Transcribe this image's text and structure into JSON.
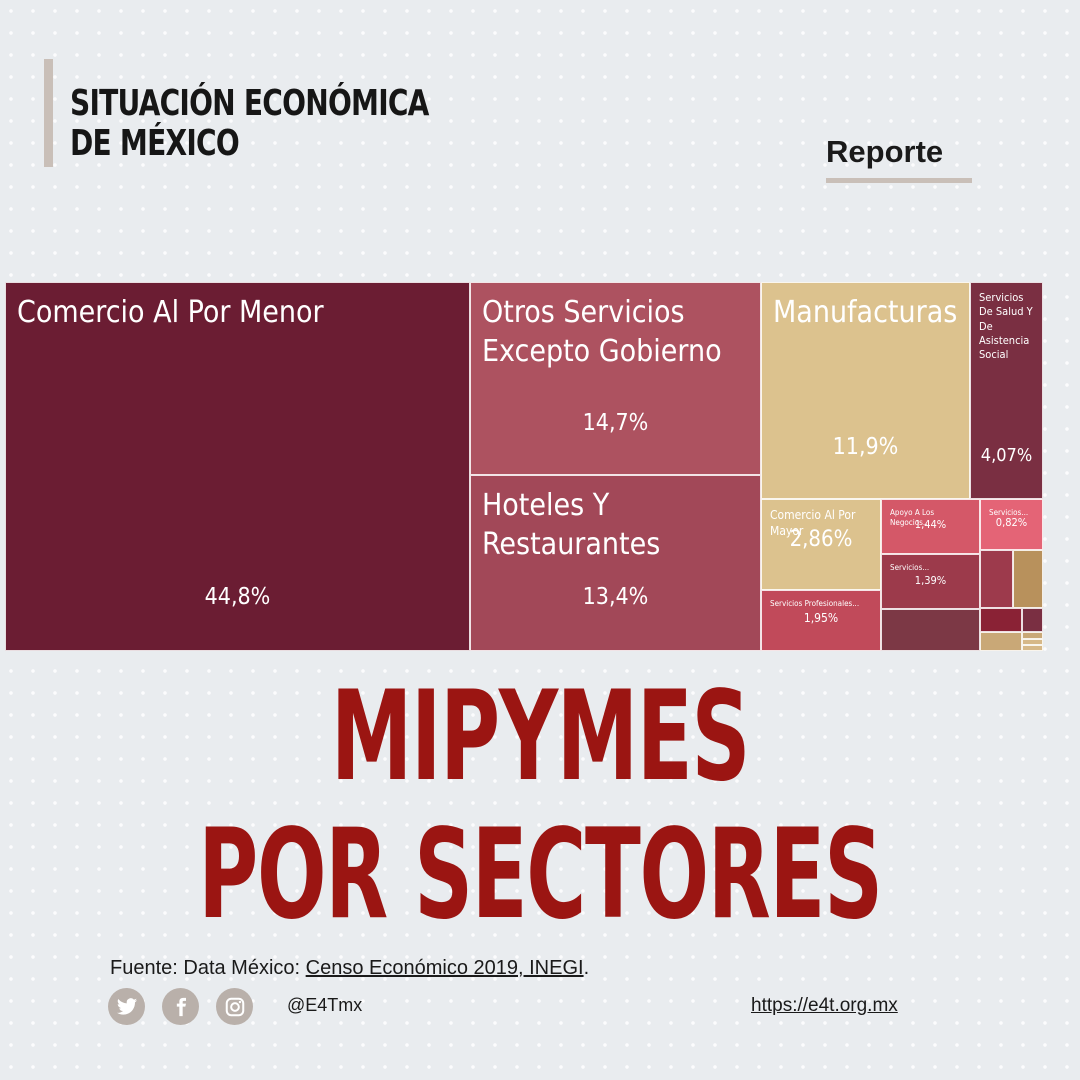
{
  "header": {
    "title_line1": "SITUACIÓN ECONÓMICA",
    "title_line2": "DE MÉXICO",
    "tag": "Reporte"
  },
  "title": {
    "line1": "MIPYMES",
    "line2": "POR SECTORES"
  },
  "chart_data": {
    "type": "treemap",
    "title": "MIPYMES POR SECTORES",
    "items": [
      {
        "label": "Comercio Al Por Menor",
        "value": 44.8,
        "value_label": "44,8%",
        "color": "#6b1d33"
      },
      {
        "label": "Otros Servicios Excepto Gobierno",
        "value": 14.7,
        "value_label": "14,7%",
        "color": "#ad5260"
      },
      {
        "label": "Hoteles Y Restaurantes",
        "value": 13.4,
        "value_label": "13,4%",
        "color": "#a24858"
      },
      {
        "label": "Manufacturas",
        "value": 11.9,
        "value_label": "11,9%",
        "color": "#dcc28e"
      },
      {
        "label": "Servicios De Salud Y De Asistencia Social",
        "value": 4.07,
        "value_label": "4,07%",
        "color": "#7a2f42"
      },
      {
        "label": "Comercio Al Por Mayor",
        "value": 2.86,
        "value_label": "2,86%",
        "color": "#dcc28e"
      },
      {
        "label": "Servicios Profesionales...",
        "value": 1.95,
        "value_label": "1,95%",
        "color": "#c14a5a"
      },
      {
        "label": "Apoyo A Los Negocios...",
        "value": 1.44,
        "value_label": "1,44%",
        "color": "#d45868"
      },
      {
        "label": "Servicios...",
        "value": 1.39,
        "value_label": "1,39%",
        "color": "#9c3a4b"
      },
      {
        "label": "Servicios...",
        "value": 0.82,
        "value_label": "0,82%",
        "color": "#e46476"
      },
      {
        "label": "",
        "value": null,
        "value_label": "",
        "color": "#7c3845"
      },
      {
        "label": "",
        "value": null,
        "value_label": "",
        "color": "#9d3a4c"
      },
      {
        "label": "",
        "value": null,
        "value_label": "",
        "color": "#b8915c"
      },
      {
        "label": "",
        "value": null,
        "value_label": "",
        "color": "#8a2235"
      },
      {
        "label": "",
        "value": null,
        "value_label": "",
        "color": "#7a2f42"
      },
      {
        "label": "",
        "value": null,
        "value_label": "",
        "color": "#c9a877"
      },
      {
        "label": "",
        "value": null,
        "value_label": "",
        "color": "#c9a877"
      },
      {
        "label": "",
        "value": null,
        "value_label": "",
        "color": "#d6b888"
      },
      {
        "label": "",
        "value": null,
        "value_label": "",
        "color": "#d6b888"
      }
    ]
  },
  "footer": {
    "source_prefix": "Fuente: Data México: ",
    "source_link": "Censo Económico 2019, INEGI",
    "source_suffix": ".",
    "handle": "@E4Tmx",
    "website": "https://e4t.org.mx",
    "icons": [
      "twitter-icon",
      "facebook-icon",
      "instagram-icon"
    ],
    "icon_color": "#b9b0aa"
  }
}
